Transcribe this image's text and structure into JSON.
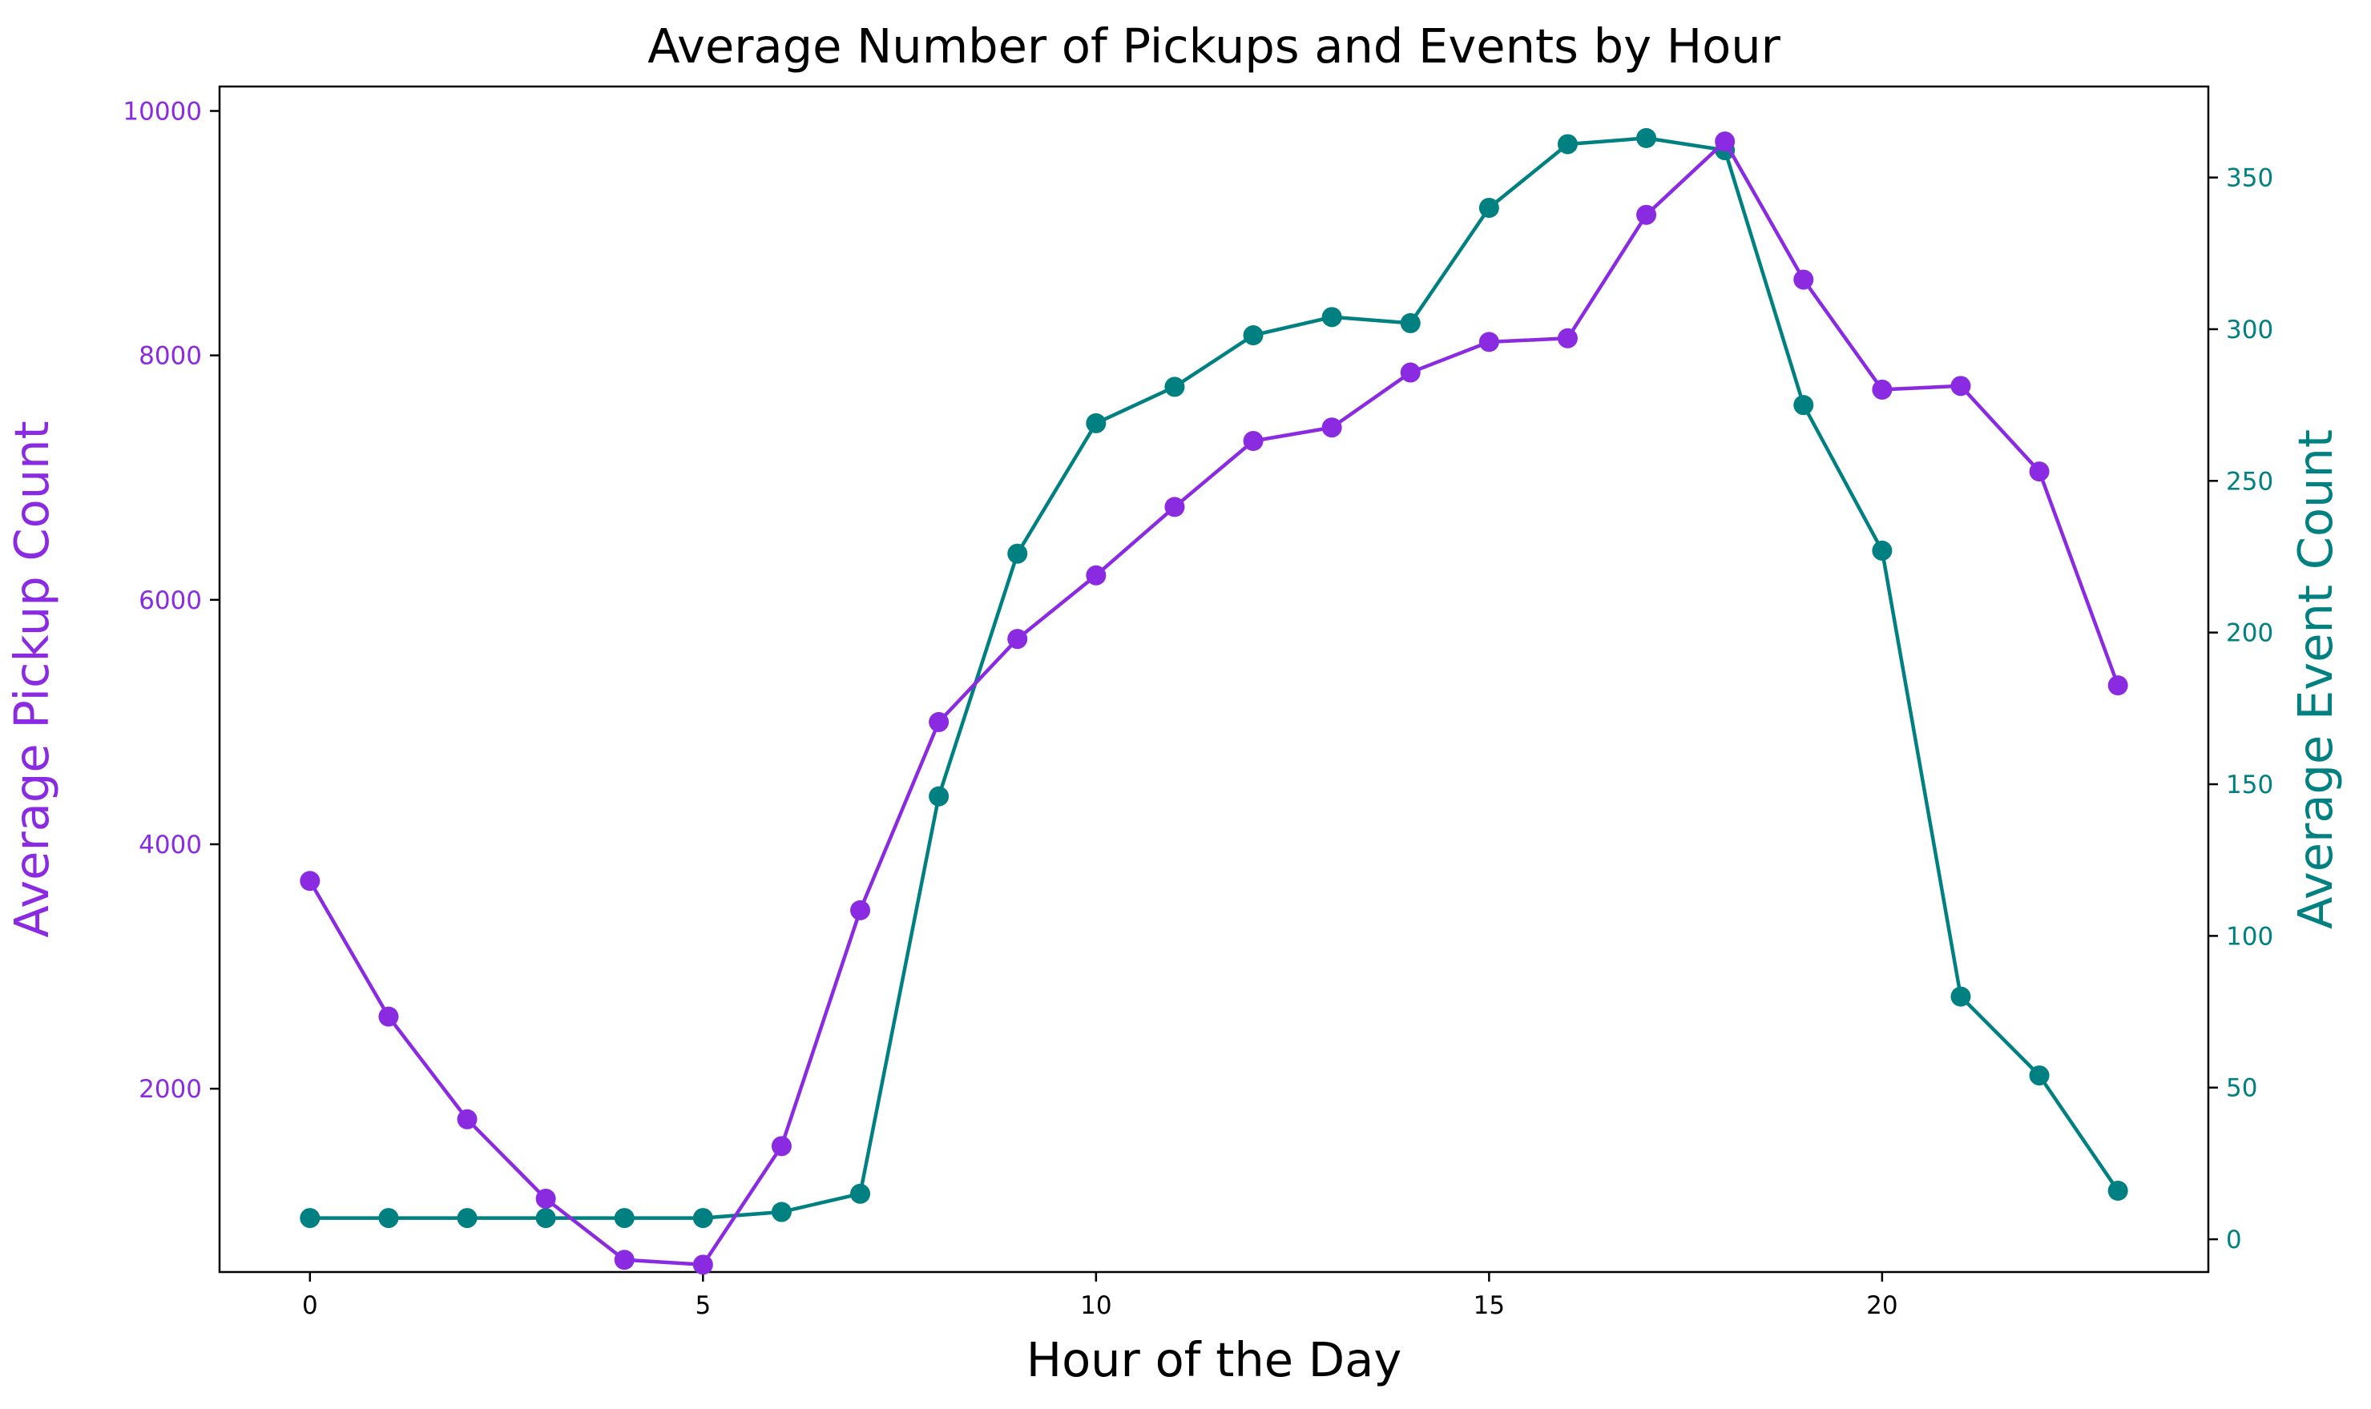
{
  "colors": {
    "pickup": "#8A2BE2",
    "event": "#008080",
    "axis": "#000000",
    "background": "#ffffff"
  },
  "chart_data": {
    "type": "line",
    "title": "Average Number of Pickups and Events by Hour",
    "xlabel": "Hour of the Day",
    "ylabel_left": "Average Pickup Count",
    "ylabel_right": "Average Event Count",
    "x": [
      0,
      1,
      2,
      3,
      4,
      5,
      6,
      7,
      8,
      9,
      10,
      11,
      12,
      13,
      14,
      15,
      16,
      17,
      18,
      19,
      20,
      21,
      22,
      23
    ],
    "xlim": [
      -1.15,
      24.15
    ],
    "xticks": [
      0,
      5,
      10,
      15,
      20
    ],
    "ylim_left": [
      500,
      10200
    ],
    "yticks_left": [
      2000,
      4000,
      6000,
      8000,
      10000
    ],
    "ylim_right": [
      -10.8,
      380
    ],
    "yticks_right": [
      0,
      50,
      100,
      150,
      200,
      250,
      300,
      350
    ],
    "grid": false,
    "series": [
      {
        "axis": "left",
        "color": "#8A2BE2",
        "values": [
          3700,
          2590,
          1750,
          1100,
          600,
          560,
          1530,
          3460,
          5000,
          5680,
          6200,
          6760,
          7300,
          7410,
          7860,
          8110,
          8140,
          9150,
          9750,
          8620,
          7720,
          7750,
          7050,
          5300
        ]
      },
      {
        "axis": "right",
        "color": "#008080",
        "values": [
          7,
          7,
          7,
          7,
          7,
          7,
          9,
          15,
          146,
          226,
          269,
          281,
          298,
          304,
          302,
          340,
          361,
          363,
          359,
          275,
          227,
          80,
          54,
          16
        ]
      }
    ]
  }
}
